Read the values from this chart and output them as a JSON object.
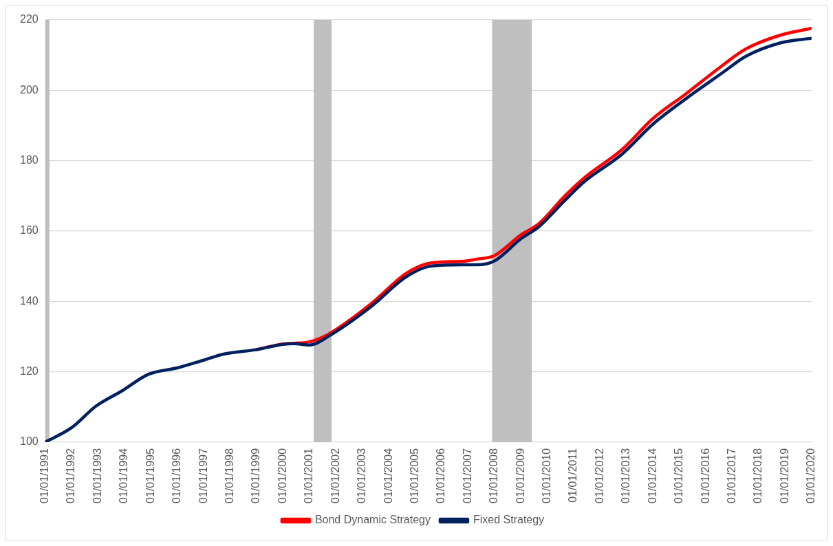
{
  "chart_data": {
    "type": "line",
    "xlim": [
      "1991-01-01",
      "2020-01-01"
    ],
    "xticks": [
      {
        "value": "1991-01-01",
        "label": "01/01/1991"
      },
      {
        "value": "1992-01-01",
        "label": "01/01/1992"
      },
      {
        "value": "1993-01-01",
        "label": "01/01/1993"
      },
      {
        "value": "1994-01-01",
        "label": "01/01/1994"
      },
      {
        "value": "1995-01-01",
        "label": "01/01/1995"
      },
      {
        "value": "1996-01-01",
        "label": "01/01/1996"
      },
      {
        "value": "1997-01-01",
        "label": "01/01/1997"
      },
      {
        "value": "1998-01-01",
        "label": "01/01/1998"
      },
      {
        "value": "1999-01-01",
        "label": "01/01/1999"
      },
      {
        "value": "2000-01-01",
        "label": "01/01/2000"
      },
      {
        "value": "2001-01-01",
        "label": "01/01/2001"
      },
      {
        "value": "2002-01-01",
        "label": "01/01/2002"
      },
      {
        "value": "2003-01-01",
        "label": "01/01/2003"
      },
      {
        "value": "2004-01-01",
        "label": "01/01/2004"
      },
      {
        "value": "2005-01-01",
        "label": "01/01/2005"
      },
      {
        "value": "2006-01-01",
        "label": "01/01/2006"
      },
      {
        "value": "2007-01-01",
        "label": "01/01/2007"
      },
      {
        "value": "2008-01-01",
        "label": "01/01/2008"
      },
      {
        "value": "2009-01-01",
        "label": "01/01/2009"
      },
      {
        "value": "2010-01-01",
        "label": "01/01/2010"
      },
      {
        "value": "2011-01-01",
        "label": "01/01/2011"
      },
      {
        "value": "2012-01-01",
        "label": "01/01/2012"
      },
      {
        "value": "2013-01-01",
        "label": "01/01/2013"
      },
      {
        "value": "2014-01-01",
        "label": "01/01/2014"
      },
      {
        "value": "2015-01-01",
        "label": "01/01/2015"
      },
      {
        "value": "2016-01-01",
        "label": "01/01/2016"
      },
      {
        "value": "2017-01-01",
        "label": "01/01/2017"
      },
      {
        "value": "2018-01-01",
        "label": "01/01/2018"
      },
      {
        "value": "2019-01-01",
        "label": "01/01/2019"
      },
      {
        "value": "2020-01-01",
        "label": "01/01/2020"
      }
    ],
    "ylim": [
      100,
      220
    ],
    "yticks": [
      100,
      120,
      140,
      160,
      180,
      200,
      220
    ],
    "grid": "y",
    "legend": "bottom",
    "bands": [
      {
        "axis": "x",
        "from": "1991-01-01",
        "to": "1991-03-01",
        "color": "#bfbfbf"
      },
      {
        "axis": "x",
        "from": "2001-03-01",
        "to": "2001-11-01",
        "color": "#bfbfbf"
      },
      {
        "axis": "x",
        "from": "2007-12-01",
        "to": "2009-06-01",
        "color": "#bfbfbf"
      }
    ],
    "series": [
      {
        "name": "Bond Dynamic Strategy",
        "color": "#ff0000",
        "x": [
          "1999-01",
          "2000-01",
          "2000-06",
          "2001-01",
          "2001-10",
          "2003-05",
          "2004-09",
          "2005-08",
          "2006-11",
          "2007-05",
          "2008-01",
          "2009-01",
          "2009-09",
          "2010-09",
          "2011-06",
          "2012-11",
          "2014-01",
          "2015-04",
          "2016-09",
          "2017-07",
          "2018-11",
          "2020-01"
        ],
        "values": [
          126.3,
          127.9,
          128.1,
          128.5,
          130.8,
          139.3,
          148,
          150.9,
          151.4,
          152,
          153,
          158.9,
          162,
          170,
          175.2,
          183.2,
          192,
          199,
          207.3,
          211.7,
          215.7,
          217.6
        ]
      },
      {
        "name": "Fixed Strategy",
        "color": "#002060",
        "x": [
          "1991-01",
          "1992-01",
          "1992-12",
          "1993-12",
          "1994-12",
          "1996-01",
          "1997-01",
          "1997-10",
          "1999-01",
          "2000-01",
          "2000-06",
          "2001-01",
          "2001-10",
          "2003-05",
          "2004-09",
          "2005-08",
          "2006-11",
          "2007-05",
          "2008-01",
          "2009-01",
          "2009-09",
          "2010-09",
          "2011-06",
          "2012-11",
          "2014-01",
          "2015-04",
          "2016-09",
          "2017-07",
          "2018-11",
          "2020-01"
        ],
        "values": [
          100,
          104.1,
          110.2,
          114.6,
          119.3,
          121.1,
          123.3,
          125,
          126.3,
          127.8,
          128,
          127.6,
          130.2,
          138.5,
          147,
          150,
          150.4,
          150.4,
          151.5,
          157.8,
          161.1,
          168.7,
          174.1,
          181.9,
          190.4,
          197.6,
          205.2,
          209.6,
          213.5,
          214.8
        ]
      }
    ]
  }
}
